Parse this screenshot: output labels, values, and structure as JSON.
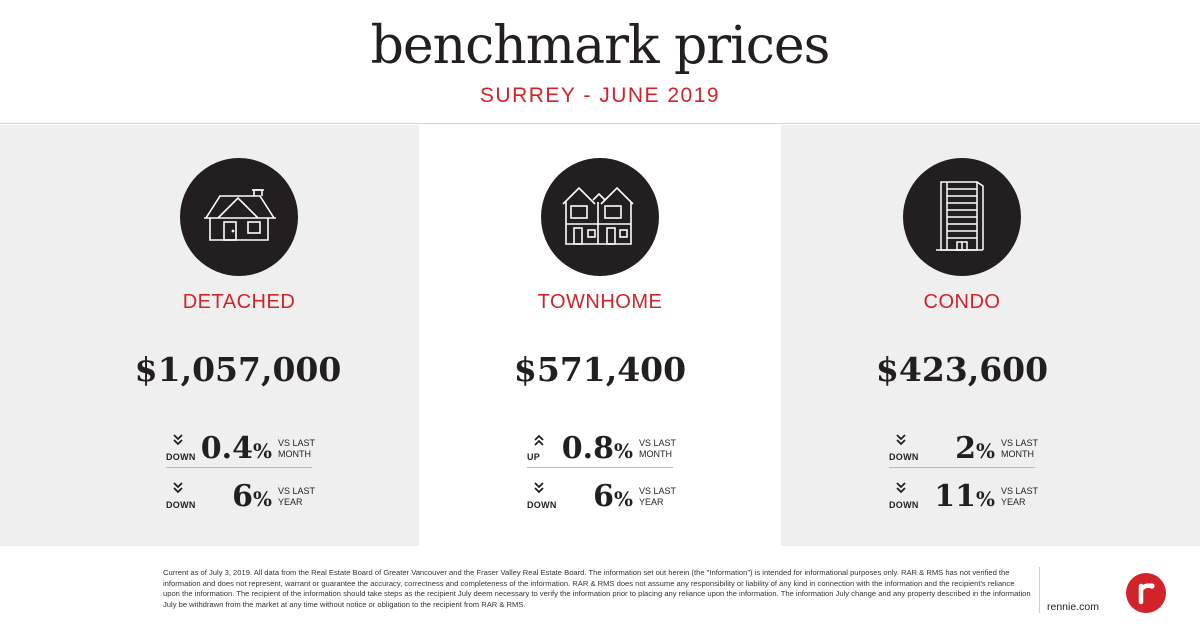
{
  "header": {
    "title": "benchmark prices",
    "subtitle": "SURREY - JUNE 2019"
  },
  "colors": {
    "accent": "#d2232a",
    "dark": "#231f20",
    "panel_grey": "#efefef"
  },
  "panels": [
    {
      "icon": "detached-house-icon",
      "type": "DETACHED",
      "price": "$1,057,000",
      "stats": [
        {
          "direction": "DOWN",
          "arrow": "double-chevron-down-icon",
          "value": "0.4",
          "unit": "%",
          "vs_line1": "VS LAST",
          "vs_line2": "MONTH"
        },
        {
          "direction": "DOWN",
          "arrow": "double-chevron-down-icon",
          "value": "6",
          "unit": "%",
          "vs_line1": "VS LAST",
          "vs_line2": "YEAR"
        }
      ]
    },
    {
      "icon": "townhome-icon",
      "type": "TOWNHOME",
      "price": "$571,400",
      "stats": [
        {
          "direction": "UP",
          "arrow": "double-chevron-up-icon",
          "value": "0.8",
          "unit": "%",
          "vs_line1": "VS LAST",
          "vs_line2": "MONTH"
        },
        {
          "direction": "DOWN",
          "arrow": "double-chevron-down-icon",
          "value": "6",
          "unit": "%",
          "vs_line1": "VS LAST",
          "vs_line2": "YEAR"
        }
      ]
    },
    {
      "icon": "condo-tower-icon",
      "type": "CONDO",
      "price": "$423,600",
      "stats": [
        {
          "direction": "DOWN",
          "arrow": "double-chevron-down-icon",
          "value": "2",
          "unit": "%",
          "vs_line1": "VS LAST",
          "vs_line2": "MONTH"
        },
        {
          "direction": "DOWN",
          "arrow": "double-chevron-down-icon",
          "value": "11",
          "unit": "%",
          "vs_line1": "VS LAST",
          "vs_line2": "YEAR"
        }
      ]
    }
  ],
  "footer": {
    "disclaimer": "Current as of July 3, 2019. All data from the Real Estate Board of Greater Vancouver and the Fraser Valley Real Estate Board. The information set out herein (the \"Information\") is intended for informational purposes only. RAR & RMS has not verified the information and does not represent, warrant or guarantee the accuracy, correctness and completeness of the information. RAR & RMS does not assume any responsibility or liability of any kind in connection with the information and the recipient's reliance upon the information. The recipient of the information should take steps as the recipient July deem necessary to verify the information prior to placing any reliance upon the information. The information July change and any property described in the information July be withdrawn from the market at any time without notice or obligation to the recipient from RAR & RMS.",
    "site": "rennie.com",
    "logo": "rennie-logo-icon"
  }
}
